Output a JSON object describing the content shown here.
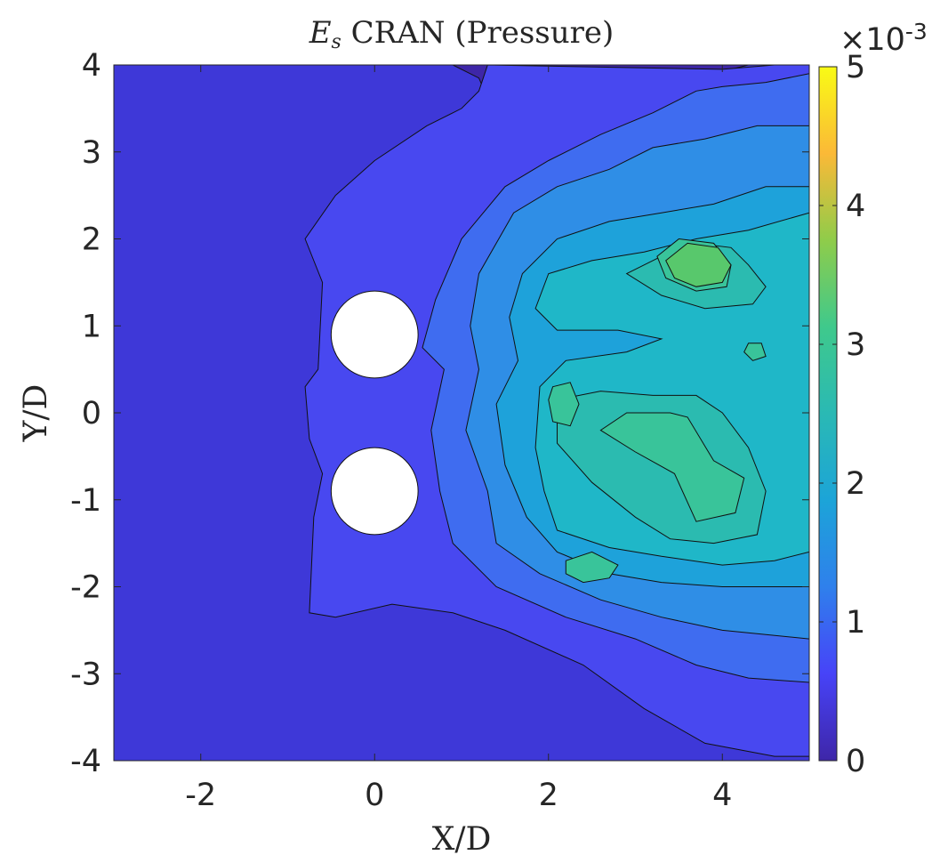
{
  "chart_data": {
    "type": "heatmap",
    "title_math": "E",
    "title_sub": "s",
    "title_rest": " CRAN (Pressure)",
    "xlabel": "X/D",
    "ylabel": "Y/D",
    "xlim": [
      -3,
      5
    ],
    "ylim": [
      -4,
      4
    ],
    "xticks": [
      -2,
      0,
      2,
      4
    ],
    "yticks": [
      -4,
      -3,
      -2,
      -1,
      0,
      1,
      2,
      3,
      4
    ],
    "colorbar": {
      "range": [
        0,
        5
      ],
      "ticks": [
        0,
        1,
        2,
        3,
        4,
        5
      ],
      "exponent_base": "×10",
      "exponent": "-3"
    },
    "grid": false,
    "colormap": [
      "#3e26a8",
      "#4743f8",
      "#2f80ec",
      "#1ca4d8",
      "#2ab9b4",
      "#3fc98c",
      "#8fcc4a",
      "#fbb937",
      "#f9fb15"
    ],
    "cylinders": [
      {
        "x": 0,
        "y": 0.9,
        "diameter": 1
      },
      {
        "x": 0,
        "y": -0.9,
        "diameter": 1
      }
    ],
    "contour_levels": [
      {
        "level": 0.45,
        "color": "#3e38d8",
        "polygons": [
          [
            [
              5,
              4
            ],
            [
              4.3,
              4
            ],
            [
              3.3,
              3.75
            ],
            [
              2.2,
              3.55
            ],
            [
              1.35,
              3.5
            ],
            [
              1.2,
              3.85
            ],
            [
              0.9,
              4
            ],
            [
              -3,
              4
            ],
            [
              -3,
              -4
            ],
            [
              5,
              -4
            ]
          ]
        ]
      },
      {
        "level": 0.65,
        "color": "#4848f0",
        "polygons": [
          [
            [
              1.3,
              4
            ],
            [
              1.2,
              3.7
            ],
            [
              1.0,
              3.5
            ],
            [
              0.6,
              3.3
            ],
            [
              0.0,
              2.9
            ],
            [
              -0.45,
              2.5
            ],
            [
              -0.8,
              2.0
            ],
            [
              -0.6,
              1.5
            ],
            [
              -0.65,
              0.5
            ],
            [
              -0.8,
              0.3
            ],
            [
              -0.75,
              -0.3
            ],
            [
              -0.6,
              -0.7
            ],
            [
              -0.7,
              -1.2
            ],
            [
              -0.75,
              -2.3
            ],
            [
              -0.45,
              -2.35
            ],
            [
              0.2,
              -2.2
            ],
            [
              0.9,
              -2.3
            ],
            [
              1.5,
              -2.5
            ],
            [
              2.4,
              -2.9
            ],
            [
              3.1,
              -3.4
            ],
            [
              3.8,
              -3.8
            ],
            [
              4.6,
              -3.95
            ],
            [
              5,
              -3.95
            ],
            [
              5,
              4
            ],
            [
              4.6,
              4
            ],
            [
              4.0,
              3.95
            ]
          ]
        ]
      },
      {
        "level": 1.0,
        "color": "#3f6cf0",
        "polygons": [
          [
            [
              5,
              3.9
            ],
            [
              4.5,
              3.8
            ],
            [
              4.0,
              3.75
            ],
            [
              3.7,
              3.7
            ],
            [
              3.2,
              3.45
            ],
            [
              2.6,
              3.2
            ],
            [
              2.0,
              2.9
            ],
            [
              1.5,
              2.6
            ],
            [
              1.0,
              2.0
            ],
            [
              0.7,
              1.3
            ],
            [
              0.55,
              0.75
            ],
            [
              0.8,
              0.5
            ],
            [
              0.65,
              -0.2
            ],
            [
              0.75,
              -0.9
            ],
            [
              0.9,
              -1.5
            ],
            [
              1.4,
              -2.0
            ],
            [
              2.2,
              -2.35
            ],
            [
              3.0,
              -2.6
            ],
            [
              3.7,
              -2.9
            ],
            [
              4.3,
              -3.05
            ],
            [
              5,
              -3.1
            ]
          ]
        ]
      },
      {
        "level": 1.35,
        "color": "#2f8ee6",
        "polygons": [
          [
            [
              5,
              3.3
            ],
            [
              4.4,
              3.3
            ],
            [
              3.8,
              3.15
            ],
            [
              3.2,
              3.05
            ],
            [
              2.7,
              2.8
            ],
            [
              2.1,
              2.6
            ],
            [
              1.6,
              2.3
            ],
            [
              1.2,
              1.6
            ],
            [
              1.1,
              1.0
            ],
            [
              1.2,
              0.5
            ],
            [
              1.05,
              -0.2
            ],
            [
              1.3,
              -0.9
            ],
            [
              1.4,
              -1.5
            ],
            [
              1.9,
              -1.85
            ],
            [
              2.6,
              -2.15
            ],
            [
              3.3,
              -2.35
            ],
            [
              4.0,
              -2.5
            ],
            [
              5,
              -2.6
            ]
          ]
        ]
      },
      {
        "level": 1.7,
        "color": "#1ea2da",
        "polygons": [
          [
            [
              5,
              2.6
            ],
            [
              4.5,
              2.6
            ],
            [
              3.9,
              2.4
            ],
            [
              3.3,
              2.3
            ],
            [
              2.7,
              2.2
            ],
            [
              2.1,
              2.0
            ],
            [
              1.7,
              1.6
            ],
            [
              1.55,
              1.1
            ],
            [
              1.65,
              0.6
            ],
            [
              1.4,
              0.1
            ],
            [
              1.5,
              -0.6
            ],
            [
              1.75,
              -1.2
            ],
            [
              2.1,
              -1.6
            ],
            [
              2.7,
              -1.85
            ],
            [
              3.3,
              -1.95
            ],
            [
              4.0,
              -2.0
            ],
            [
              5,
              -2.0
            ]
          ]
        ]
      },
      {
        "level": 2.05,
        "color": "#1fb7c8",
        "polygons": [
          [
            [
              5,
              2.3
            ],
            [
              4.3,
              2.1
            ],
            [
              3.7,
              2.0
            ],
            [
              3.1,
              1.85
            ],
            [
              2.5,
              1.75
            ],
            [
              2.0,
              1.6
            ],
            [
              1.85,
              1.2
            ],
            [
              2.1,
              0.95
            ],
            [
              2.8,
              0.95
            ],
            [
              3.3,
              0.85
            ],
            [
              2.9,
              0.7
            ],
            [
              2.2,
              0.6
            ],
            [
              1.9,
              0.3
            ],
            [
              1.85,
              -0.4
            ],
            [
              1.95,
              -0.9
            ],
            [
              2.1,
              -1.35
            ],
            [
              2.7,
              -1.55
            ],
            [
              3.3,
              -1.65
            ],
            [
              4.0,
              -1.75
            ],
            [
              4.6,
              -1.7
            ],
            [
              5,
              -1.6
            ]
          ]
        ]
      },
      {
        "level": 2.4,
        "color": "#2bbbb0",
        "polygons": [
          [
            [
              3.3,
              1.8
            ],
            [
              3.7,
              1.95
            ],
            [
              4.1,
              1.9
            ],
            [
              4.3,
              1.7
            ],
            [
              4.5,
              1.45
            ],
            [
              4.35,
              1.25
            ],
            [
              3.8,
              1.2
            ],
            [
              3.3,
              1.35
            ],
            [
              2.9,
              1.6
            ]
          ],
          [
            [
              3.2,
              0.2
            ],
            [
              3.7,
              0.2
            ],
            [
              4.0,
              0.0
            ],
            [
              4.3,
              -0.4
            ],
            [
              4.5,
              -0.9
            ],
            [
              4.4,
              -1.4
            ],
            [
              3.9,
              -1.5
            ],
            [
              3.4,
              -1.45
            ],
            [
              3.0,
              -1.2
            ],
            [
              2.5,
              -0.8
            ],
            [
              2.1,
              -0.35
            ],
            [
              2.1,
              0.15
            ],
            [
              2.6,
              0.25
            ]
          ]
        ]
      },
      {
        "level": 2.75,
        "color": "#39c49a",
        "polygons": [
          [
            [
              3.5,
              2.0
            ],
            [
              3.9,
              1.95
            ],
            [
              4.1,
              1.7
            ],
            [
              4.05,
              1.45
            ],
            [
              3.7,
              1.4
            ],
            [
              3.35,
              1.55
            ],
            [
              3.25,
              1.8
            ]
          ],
          [
            [
              2.05,
              0.3
            ],
            [
              2.25,
              0.35
            ],
            [
              2.35,
              0.1
            ],
            [
              2.25,
              -0.15
            ],
            [
              2.05,
              -0.1
            ],
            [
              2.0,
              0.15
            ]
          ],
          [
            [
              3.4,
              0.0
            ],
            [
              3.6,
              -0.05
            ],
            [
              3.9,
              -0.55
            ],
            [
              4.25,
              -0.75
            ],
            [
              4.15,
              -1.15
            ],
            [
              3.7,
              -1.25
            ],
            [
              3.45,
              -0.7
            ],
            [
              3.0,
              -0.45
            ],
            [
              2.6,
              -0.2
            ],
            [
              2.9,
              0.0
            ]
          ],
          [
            [
              2.2,
              -1.7
            ],
            [
              2.5,
              -1.6
            ],
            [
              2.8,
              -1.75
            ],
            [
              2.7,
              -1.9
            ],
            [
              2.4,
              -1.95
            ],
            [
              2.2,
              -1.85
            ]
          ],
          [
            [
              4.3,
              0.8
            ],
            [
              4.45,
              0.8
            ],
            [
              4.5,
              0.65
            ],
            [
              4.35,
              0.6
            ],
            [
              4.25,
              0.7
            ]
          ]
        ]
      },
      {
        "level": 3.1,
        "color": "#58c86c",
        "polygons": [
          [
            [
              3.6,
              1.95
            ],
            [
              3.95,
              1.9
            ],
            [
              4.1,
              1.7
            ],
            [
              4.0,
              1.5
            ],
            [
              3.7,
              1.45
            ],
            [
              3.45,
              1.55
            ],
            [
              3.35,
              1.75
            ]
          ]
        ]
      }
    ]
  }
}
